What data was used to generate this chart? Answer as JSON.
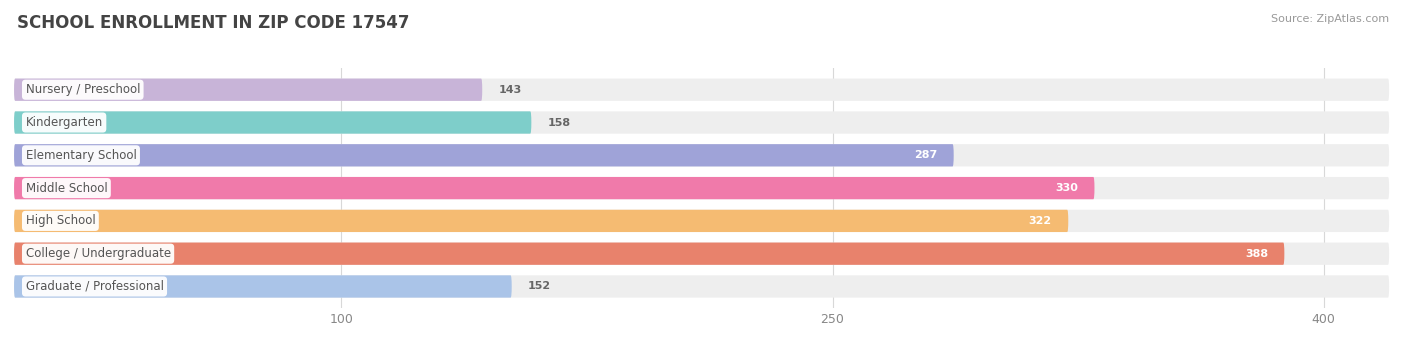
{
  "title": "SCHOOL ENROLLMENT IN ZIP CODE 17547",
  "source": "Source: ZipAtlas.com",
  "categories": [
    "Nursery / Preschool",
    "Kindergarten",
    "Elementary School",
    "Middle School",
    "High School",
    "College / Undergraduate",
    "Graduate / Professional"
  ],
  "values": [
    143,
    158,
    287,
    330,
    322,
    388,
    152
  ],
  "bar_colors": [
    "#c8b4d8",
    "#7ececa",
    "#9fa3d8",
    "#f07aaa",
    "#f5bb72",
    "#e8826c",
    "#aac4e8"
  ],
  "bar_bg_color": "#eeeeee",
  "label_text_color": "#555555",
  "value_text_color_inside": "#ffffff",
  "value_text_color_outside": "#666666",
  "inside_threshold": 200,
  "xlim_data": 420,
  "xticks": [
    100,
    250,
    400
  ],
  "title_fontsize": 12,
  "source_fontsize": 8,
  "label_fontsize": 8.5,
  "value_fontsize": 8,
  "tick_fontsize": 9,
  "background_color": "#ffffff"
}
